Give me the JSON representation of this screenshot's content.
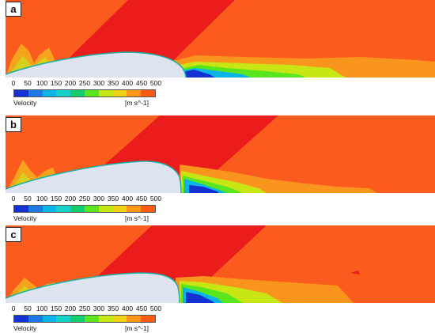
{
  "panels": [
    {
      "label": "a"
    },
    {
      "label": "b"
    },
    {
      "label": "c"
    }
  ],
  "legend": {
    "title": "Velocity",
    "unit": "[m s^-1]",
    "ticks": [
      "0",
      "50",
      "100",
      "150",
      "200",
      "250",
      "300",
      "350",
      "400",
      "450",
      "500"
    ],
    "colors": [
      "#1432d2",
      "#1e78e6",
      "#0ab4e6",
      "#14d2c8",
      "#14cc6e",
      "#5ae61e",
      "#c8e614",
      "#f0d214",
      "#ff9614",
      "#ff5a14"
    ]
  },
  "field_colors": {
    "freestream": "#fb5b1c",
    "shock": "#ea1d1c",
    "body": "#dde3ef",
    "ground": "#eef1f7"
  }
}
